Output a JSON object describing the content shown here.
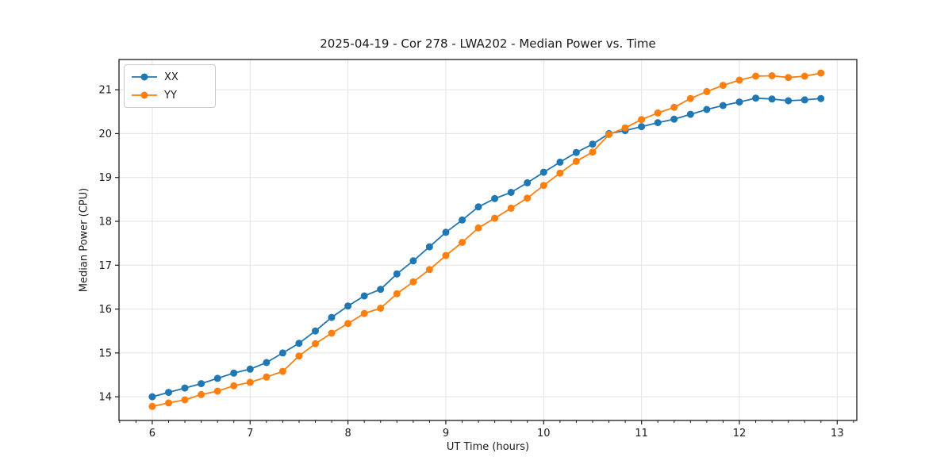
{
  "figure": {
    "title": "2025-04-19 - Cor 278 - LWA202 - Median Power vs. Time",
    "xlabel": "UT Time (hours)",
    "ylabel": "Median Power (CPU)"
  },
  "legend": {
    "items": [
      {
        "label": "XX",
        "color": "#1f77b4"
      },
      {
        "label": "YY",
        "color": "#ff7f0e"
      }
    ]
  },
  "chart_data": {
    "type": "line",
    "title": "2025-04-19 - Cor 278 - LWA202 - Median Power vs. Time",
    "xlabel": "UT Time (hours)",
    "ylabel": "Median Power (CPU)",
    "grid": true,
    "legend_position": "upper left",
    "xlim": [
      5.66,
      13.2
    ],
    "ylim": [
      13.46,
      21.69
    ],
    "xticks": [
      6,
      7,
      8,
      9,
      10,
      11,
      12,
      13
    ],
    "yticks": [
      14,
      15,
      16,
      17,
      18,
      19,
      20,
      21
    ],
    "x_minor_step": 0.16667,
    "x": [
      6.0,
      6.167,
      6.333,
      6.5,
      6.667,
      6.833,
      7.0,
      7.167,
      7.333,
      7.5,
      7.667,
      7.833,
      8.0,
      8.167,
      8.333,
      8.5,
      8.667,
      8.833,
      9.0,
      9.167,
      9.333,
      9.5,
      9.667,
      9.833,
      10.0,
      10.167,
      10.333,
      10.5,
      10.667,
      10.833,
      11.0,
      11.167,
      11.333,
      11.5,
      11.667,
      11.833,
      12.0,
      12.167,
      12.333,
      12.5,
      12.667,
      12.833
    ],
    "series": [
      {
        "name": "XX",
        "color": "#1f77b4",
        "values": [
          14.0,
          14.1,
          14.2,
          14.3,
          14.42,
          14.54,
          14.63,
          14.78,
          15.0,
          15.22,
          15.5,
          15.81,
          16.07,
          16.3,
          16.45,
          16.8,
          17.1,
          17.42,
          17.75,
          18.03,
          18.33,
          18.52,
          18.66,
          18.88,
          19.12,
          19.35,
          19.57,
          19.76,
          20.0,
          20.07,
          20.16,
          20.25,
          20.33,
          20.44,
          20.55,
          20.64,
          20.72,
          20.81,
          20.79,
          20.75,
          20.77,
          20.8
        ]
      },
      {
        "name": "YY",
        "color": "#ff7f0e",
        "values": [
          13.78,
          13.86,
          13.93,
          14.05,
          14.13,
          14.25,
          14.33,
          14.45,
          14.58,
          14.93,
          15.21,
          15.45,
          15.67,
          15.9,
          16.02,
          16.35,
          16.62,
          16.9,
          17.22,
          17.52,
          17.85,
          18.07,
          18.3,
          18.53,
          18.82,
          19.1,
          19.37,
          19.58,
          19.98,
          20.13,
          20.32,
          20.47,
          20.6,
          20.8,
          20.96,
          21.1,
          21.22,
          21.31,
          21.32,
          21.28,
          21.31,
          21.38
        ]
      }
    ]
  }
}
